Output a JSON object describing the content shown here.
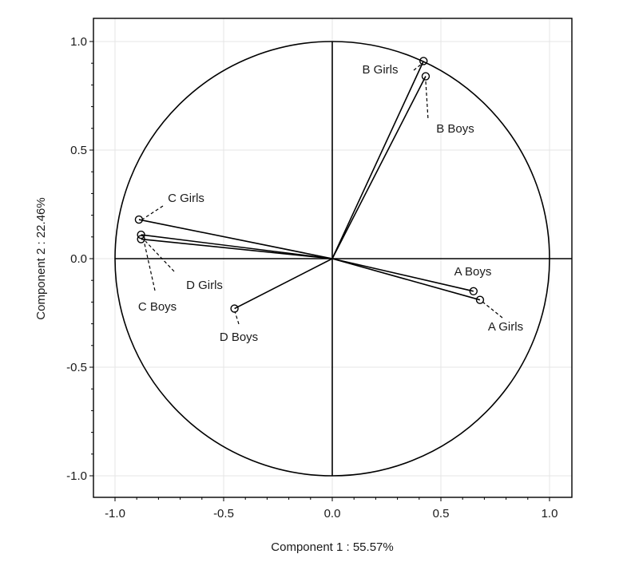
{
  "chart_data": {
    "type": "scatter",
    "title": "",
    "xlabel": "Component  1 : 55.57%",
    "ylabel": "Component 2 : 22.46%",
    "xlim": [
      -1.1,
      1.1
    ],
    "ylim": [
      -1.1,
      1.1
    ],
    "x_ticks": [
      "-1.0",
      "-0.5",
      "0.0",
      "0.5",
      "1.0"
    ],
    "y_ticks": [
      "1.0",
      "0.5",
      "0.0",
      "-0.5",
      "-1.0"
    ],
    "grid": true,
    "unit_circle": true,
    "points": [
      {
        "label": "B Girls",
        "x": 0.42,
        "y": 0.91
      },
      {
        "label": "B Boys",
        "x": 0.43,
        "y": 0.84
      },
      {
        "label": "C Girls",
        "x": -0.89,
        "y": 0.18
      },
      {
        "label": "C Boys",
        "x": -0.88,
        "y": 0.11
      },
      {
        "label": "D Girls",
        "x": -0.88,
        "y": 0.09
      },
      {
        "label": "D Boys",
        "x": -0.45,
        "y": -0.23
      },
      {
        "label": "A Boys",
        "x": 0.65,
        "y": -0.15
      },
      {
        "label": "A Girls",
        "x": 0.68,
        "y": -0.19
      }
    ]
  }
}
